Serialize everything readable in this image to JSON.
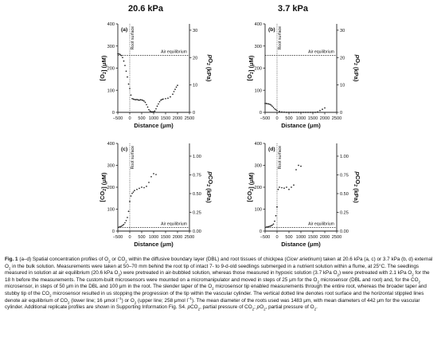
{
  "figure": {
    "col_title_left": "20.6 kPa",
    "col_title_right": "3.7 kPa",
    "root_surface_label": "Root surface",
    "air_eq_label": "Air equilibrium"
  },
  "chart_data": [
    {
      "panel": "(a)",
      "type": "scatter",
      "xlabel": "Distance (μm)",
      "ylabel": "[O2] (μM)",
      "y2label": "pO2 (kPa)",
      "xlim": [
        -500,
        2500
      ],
      "ylim": [
        0,
        400
      ],
      "y2lim": [
        0,
        32.3
      ],
      "xticks": [
        "−500",
        "0",
        "500",
        "1000",
        "1500",
        "2000",
        "2500"
      ],
      "yticks": [
        "0",
        "100",
        "200",
        "300",
        "400"
      ],
      "y2ticks": [
        "0",
        "10",
        "20",
        "30"
      ],
      "air_equilibrium": 258,
      "root_surface_x": 0,
      "points": [
        [
          -500,
          265
        ],
        [
          -450,
          264
        ],
        [
          -400,
          262
        ],
        [
          -350,
          257
        ],
        [
          -300,
          248
        ],
        [
          -250,
          232
        ],
        [
          -200,
          212
        ],
        [
          -150,
          186
        ],
        [
          -100,
          160
        ],
        [
          -50,
          128
        ],
        [
          0,
          108
        ],
        [
          50,
          78
        ],
        [
          100,
          62
        ],
        [
          150,
          60
        ],
        [
          200,
          58
        ],
        [
          250,
          57
        ],
        [
          300,
          58
        ],
        [
          350,
          56
        ],
        [
          400,
          55
        ],
        [
          450,
          57
        ],
        [
          500,
          56
        ],
        [
          550,
          54
        ],
        [
          600,
          51
        ],
        [
          650,
          45
        ],
        [
          700,
          35
        ],
        [
          750,
          24
        ],
        [
          800,
          12
        ],
        [
          850,
          6
        ],
        [
          900,
          3
        ],
        [
          950,
          2
        ],
        [
          1000,
          3
        ],
        [
          1050,
          6
        ],
        [
          1100,
          16
        ],
        [
          1150,
          28
        ],
        [
          1200,
          38
        ],
        [
          1250,
          48
        ],
        [
          1300,
          55
        ],
        [
          1350,
          58
        ],
        [
          1400,
          60
        ],
        [
          1500,
          62
        ],
        [
          1600,
          64
        ],
        [
          1700,
          70
        ],
        [
          1800,
          82
        ],
        [
          1850,
          94
        ],
        [
          1900,
          104
        ],
        [
          1950,
          114
        ],
        [
          2000,
          122
        ]
      ]
    },
    {
      "panel": "(b)",
      "type": "scatter",
      "xlabel": "Distance (μm)",
      "ylabel": "[O2] (μM)",
      "y2label": "pO2 (kPa)",
      "xlim": [
        -500,
        2500
      ],
      "ylim": [
        0,
        400
      ],
      "y2lim": [
        0,
        32.3
      ],
      "xticks": [
        "−500",
        "0",
        "500",
        "1000",
        "1500",
        "2000",
        "2500"
      ],
      "yticks": [
        "0",
        "100",
        "200",
        "300",
        "400"
      ],
      "y2ticks": [
        "0",
        "10",
        "20",
        "30"
      ],
      "air_equilibrium": 258,
      "root_surface_x": 0,
      "points": [
        [
          -500,
          40
        ],
        [
          -450,
          40
        ],
        [
          -400,
          39
        ],
        [
          -350,
          38
        ],
        [
          -300,
          36
        ],
        [
          -250,
          33
        ],
        [
          -200,
          28
        ],
        [
          -150,
          22
        ],
        [
          -100,
          16
        ],
        [
          -50,
          12
        ],
        [
          0,
          8
        ],
        [
          100,
          4
        ],
        [
          200,
          2
        ],
        [
          300,
          1
        ],
        [
          400,
          0
        ],
        [
          500,
          0
        ],
        [
          600,
          0
        ],
        [
          700,
          0
        ],
        [
          800,
          0
        ],
        [
          900,
          0
        ],
        [
          1000,
          0
        ],
        [
          1100,
          0
        ],
        [
          1200,
          0
        ],
        [
          1300,
          0
        ],
        [
          1400,
          0
        ],
        [
          1500,
          0
        ],
        [
          1600,
          0
        ],
        [
          1700,
          2
        ],
        [
          1800,
          8
        ],
        [
          1900,
          14
        ],
        [
          2000,
          20
        ]
      ]
    },
    {
      "panel": "(c)",
      "type": "scatter",
      "xlabel": "Distance (μm)",
      "ylabel": "[CO2] (μM)",
      "y2label": "pCO2 (kPa)",
      "xlim": [
        -500,
        2500
      ],
      "ylim": [
        0,
        400
      ],
      "y2lim": [
        0,
        1.17
      ],
      "xticks": [
        "−500",
        "0",
        "500",
        "1000",
        "1500",
        "2000",
        "2500"
      ],
      "yticks": [
        "0",
        "100",
        "200",
        "300",
        "400"
      ],
      "y2ticks": [
        "0.00",
        "0.25",
        "0.50",
        "0.75",
        "1.00"
      ],
      "air_equilibrium": 16,
      "root_surface_x": 0,
      "points": [
        [
          -450,
          18
        ],
        [
          -400,
          20
        ],
        [
          -350,
          22
        ],
        [
          -300,
          26
        ],
        [
          -250,
          30
        ],
        [
          -200,
          38
        ],
        [
          -150,
          48
        ],
        [
          -100,
          62
        ],
        [
          -50,
          90
        ],
        [
          0,
          135
        ],
        [
          50,
          160
        ],
        [
          100,
          172
        ],
        [
          150,
          178
        ],
        [
          200,
          185
        ],
        [
          300,
          190
        ],
        [
          400,
          195
        ],
        [
          500,
          200
        ],
        [
          600,
          198
        ],
        [
          700,
          204
        ],
        [
          800,
          222
        ],
        [
          900,
          248
        ],
        [
          1000,
          262
        ],
        [
          1100,
          258
        ]
      ]
    },
    {
      "panel": "(d)",
      "type": "scatter",
      "xlabel": "Distance (μm)",
      "ylabel": "[CO2] (μM)",
      "y2label": "pCO2 (kPa)",
      "xlim": [
        -500,
        2500
      ],
      "ylim": [
        0,
        400
      ],
      "y2lim": [
        0,
        1.17
      ],
      "xticks": [
        "−500",
        "0",
        "500",
        "1000",
        "1500",
        "2000",
        "2500"
      ],
      "yticks": [
        "0",
        "100",
        "200",
        "300",
        "400"
      ],
      "y2ticks": [
        "0.00",
        "0.25",
        "0.50",
        "0.75",
        "1.00"
      ],
      "air_equilibrium": 16,
      "root_surface_x": 0,
      "points": [
        [
          -450,
          18
        ],
        [
          -400,
          19
        ],
        [
          -350,
          20
        ],
        [
          -300,
          22
        ],
        [
          -250,
          24
        ],
        [
          -200,
          27
        ],
        [
          -150,
          32
        ],
        [
          -100,
          45
        ],
        [
          -50,
          70
        ],
        [
          0,
          110
        ],
        [
          50,
          190
        ],
        [
          100,
          200
        ],
        [
          200,
          198
        ],
        [
          300,
          196
        ],
        [
          400,
          200
        ],
        [
          500,
          190
        ],
        [
          600,
          200
        ],
        [
          700,
          210
        ],
        [
          800,
          280
        ],
        [
          900,
          300
        ],
        [
          1000,
          296
        ]
      ]
    }
  ],
  "caption": {
    "fig": "Fig. 1",
    "p1": " (a–d) Spatial concentration profiles of O",
    "p2": " or CO",
    "p3": " within the diffusive boundary layer (DBL) and root tissues of chickpea (",
    "species": "Cicer arietinum",
    "p4": ") taken at 20.6 kPa (a, c) or 3.7 kPa (b, d) external O",
    "p5": " in the bulk solution. Measurements were taken at 50–70 mm behind the root tip of intact 7- to 9-d-old seedlings submerged in a nutrient solution within a flume, at 25°C. The seedlings measured in solution at air equilibrium (20.6 kPa O",
    "p6": ") were pretreated in air-bubbled solution, whereas those measured in hypoxic solution (3.7 kPa O",
    "p7": ") were pretreated with 2.1 kPa O",
    "p8": " for the 18 h before the measurements. The custom-built microsensors were mounted on a micromanipulator and moved in steps of 25 μm for the O",
    "p9": " microsensor (DBL and root) and, for the CO",
    "p10": " microsensor, in steps of 50 μm in the DBL and 100 μm in the root. The slender taper of the O",
    "p11": " microsensor tip enabled measurements through the entire root, whereas the broader taper and stubby tip of the CO",
    "p12": " microsensor resulted in us stopping the progression of the tip within the vascular cylinder. The vertical dotted line denotes root surface and the horizontal stippled lines denote air equilibrium of CO",
    "p13": " (lower line; 16 μmol l",
    "p14": ") or O",
    "p15": " (upper line; 258 μmol l",
    "p16": "). The mean diameter of the roots used was 1483 μm, with mean diameters of 442 μm for the vascular cylinder. Additional replicate profiles are shown in Supporting Information Fig. S4. ",
    "p17": "CO",
    "p18": ", partial pressure of CO",
    "p19": "; ",
    "p20": "O",
    "p21": ", partial pressure of O",
    "p22": ".",
    "sub2": "2",
    "supm1": "−1",
    "p_italic": "p"
  },
  "colors": {
    "ink": "#111111",
    "axis": "#222222",
    "marker": "#222222"
  }
}
